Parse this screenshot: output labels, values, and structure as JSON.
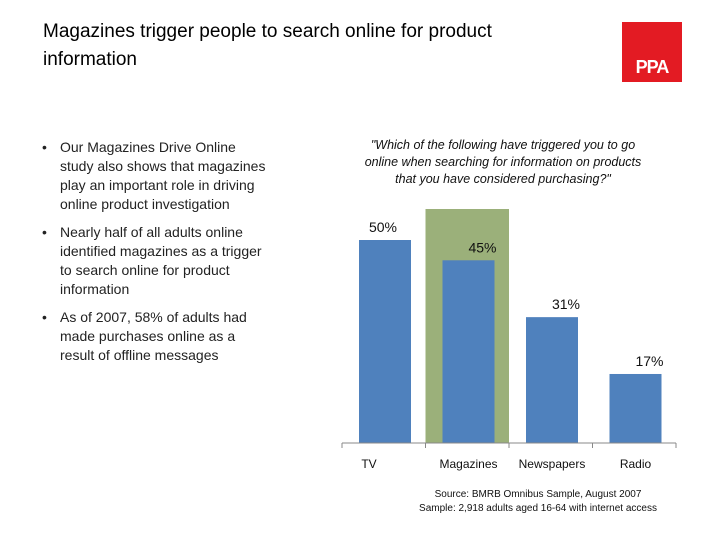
{
  "title": "Magazines trigger people to search online for product information",
  "logo": {
    "text": "PPA",
    "color": "#e31b23"
  },
  "bullets": [
    "Our Magazines Drive Online study also shows that magazines play an important role in driving online product investigation",
    "Nearly half of all adults online identified magazines as a trigger to search online for product information",
    "As of 2007, 58% of adults had made purchases online as a result of offline messages"
  ],
  "bullet_symbol": "•",
  "question": "\"Which of the following have triggered you to go online when searching for information on products that you have considered purchasing?\"",
  "source": {
    "line1": "Source: BMRB Omnibus Sample, August 2007",
    "line2": "Sample: 2,918 adults aged 16-64 with internet access"
  },
  "chart_data": {
    "type": "bar",
    "title": "\"Which of the following have triggered you to go online when searching for information on products that you have considered purchasing?\"",
    "categories": [
      "TV",
      "Magazines",
      "Newspapers",
      "Radio"
    ],
    "values": [
      50,
      45,
      31,
      17
    ],
    "value_labels": [
      "50%",
      "45%",
      "31%",
      "17%"
    ],
    "highlight_category": "Magazines",
    "ylim": [
      0,
      50
    ],
    "xlabel": "",
    "ylabel": "",
    "bar_color": "#4f81bd",
    "highlight_color": "#9bb07a"
  }
}
